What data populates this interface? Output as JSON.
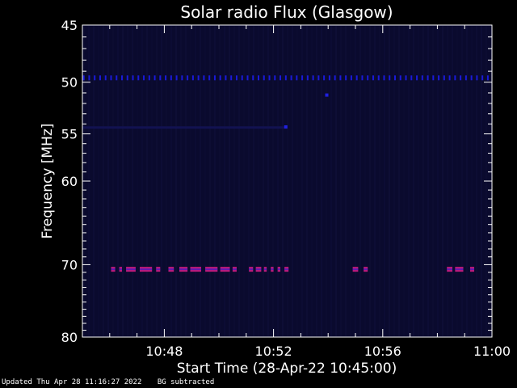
{
  "chart_data": {
    "type": "heatmap",
    "title": "Solar radio Flux (Glasgow)",
    "xlabel": "Start Time (28-Apr-22 10:45:00)",
    "ylabel": "Frequency [MHz]",
    "x_ticks": [
      "10:48",
      "10:52",
      "10:56",
      "11:00"
    ],
    "x_tick_minutes": [
      48,
      52,
      56,
      60
    ],
    "xlim_minutes": [
      45,
      60
    ],
    "y_ticks": [
      45,
      50,
      55,
      60,
      70,
      80
    ],
    "ylim": [
      45,
      80
    ],
    "y_scale": "log",
    "background_color": "#0a0a2e",
    "band_emissions": [
      {
        "frequency_mhz": 49.6,
        "color": "#1a1ad8",
        "style": "dotted",
        "minutes": [
          45.0,
          60.0
        ]
      },
      {
        "frequency_mhz": 70.6,
        "color": "#c01a7a",
        "style": "bursts",
        "segments": [
          [
            46.05,
            46.2
          ],
          [
            46.35,
            46.45
          ],
          [
            46.6,
            46.95
          ],
          [
            47.1,
            47.55
          ],
          [
            47.7,
            47.85
          ],
          [
            48.15,
            48.35
          ],
          [
            48.55,
            48.85
          ],
          [
            48.95,
            49.35
          ],
          [
            49.5,
            49.95
          ],
          [
            50.05,
            50.4
          ],
          [
            50.5,
            50.65
          ],
          [
            51.1,
            51.25
          ],
          [
            51.35,
            51.55
          ],
          [
            51.65,
            51.75
          ],
          [
            51.9,
            52.0
          ],
          [
            52.15,
            52.25
          ],
          [
            52.4,
            52.55
          ],
          [
            54.9,
            55.1
          ],
          [
            55.3,
            55.45
          ],
          [
            58.35,
            58.55
          ],
          [
            58.65,
            58.95
          ],
          [
            59.2,
            59.35
          ]
        ]
      }
    ],
    "spots": [
      {
        "minute": 53.95,
        "frequency_mhz": 51.2
      },
      {
        "minute": 52.45,
        "frequency_mhz": 54.3
      }
    ]
  },
  "footer": {
    "updated": "Updated Thu Apr 28 11:16:27 2022",
    "note": "BG subtracted"
  }
}
